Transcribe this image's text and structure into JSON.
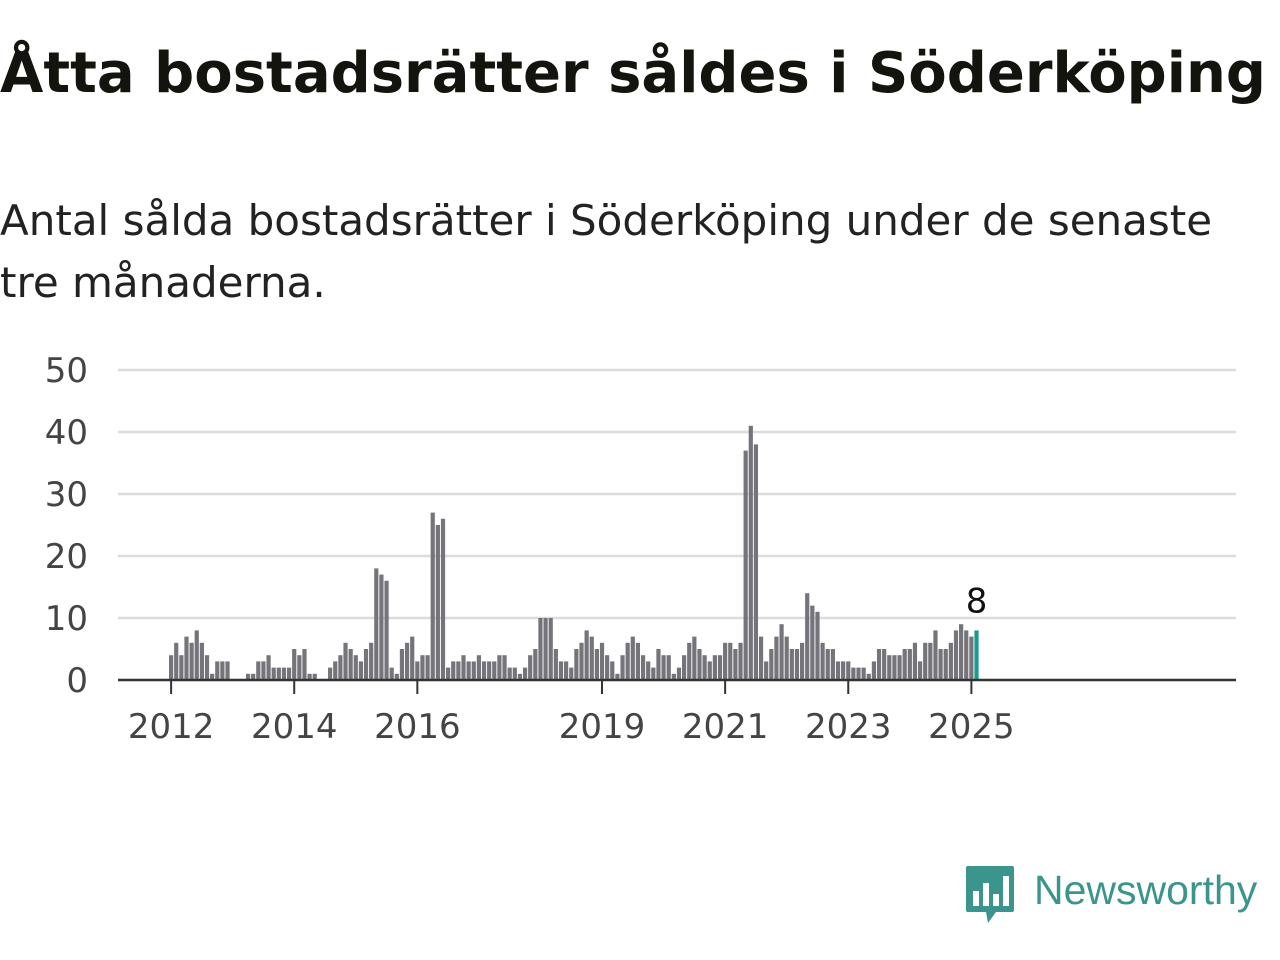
{
  "title": "Åtta bostadsrätter såldes i Söderköping",
  "subtitle": "Antal sålda bostadsrätter i Söderköping under de senaste tre månaderna.",
  "brand": {
    "name": "Newsworthy",
    "color": "#3b958d",
    "icon": "newsworthy-logo-icon"
  },
  "chart_data": {
    "type": "bar",
    "ylim": [
      0,
      50
    ],
    "yticks": [
      0,
      10,
      20,
      30,
      40,
      50
    ],
    "grid": true,
    "xlabel": "",
    "ylabel": "",
    "bar_color": "#75747b",
    "highlight_color": "#1d9a8d",
    "start": "2012-01",
    "x_labels": [
      {
        "label": "2012",
        "date": "2012-01"
      },
      {
        "label": "2014",
        "date": "2014-01"
      },
      {
        "label": "2016",
        "date": "2016-01"
      },
      {
        "label": "2019",
        "date": "2019-01"
      },
      {
        "label": "2021",
        "date": "2021-01"
      },
      {
        "label": "2023",
        "date": "2023-01"
      },
      {
        "label": "2025",
        "date": "2025-01"
      }
    ],
    "highlight_label": "8",
    "values": [
      4,
      6,
      4,
      7,
      6,
      8,
      6,
      4,
      1,
      3,
      3,
      3,
      0,
      0,
      0,
      1,
      1,
      3,
      3,
      4,
      2,
      2,
      2,
      2,
      5,
      4,
      5,
      1,
      1,
      0,
      0,
      2,
      3,
      4,
      6,
      5,
      4,
      3,
      5,
      6,
      18,
      17,
      16,
      2,
      1,
      5,
      6,
      7,
      3,
      4,
      4,
      27,
      25,
      26,
      2,
      3,
      3,
      4,
      3,
      3,
      4,
      3,
      3,
      3,
      4,
      4,
      2,
      2,
      1,
      2,
      4,
      5,
      10,
      10,
      10,
      5,
      3,
      3,
      2,
      5,
      6,
      8,
      7,
      5,
      6,
      4,
      3,
      1,
      4,
      6,
      7,
      6,
      4,
      3,
      2,
      5,
      4,
      4,
      1,
      2,
      4,
      6,
      7,
      5,
      4,
      3,
      4,
      4,
      6,
      6,
      5,
      6,
      37,
      41,
      38,
      7,
      3,
      5,
      7,
      9,
      7,
      5,
      5,
      6,
      14,
      12,
      11,
      6,
      5,
      5,
      3,
      3,
      3,
      2,
      2,
      2,
      1,
      3,
      5,
      5,
      4,
      4,
      4,
      5,
      5,
      6,
      3,
      6,
      6,
      8,
      5,
      5,
      6,
      8,
      9,
      8,
      7,
      8
    ]
  }
}
